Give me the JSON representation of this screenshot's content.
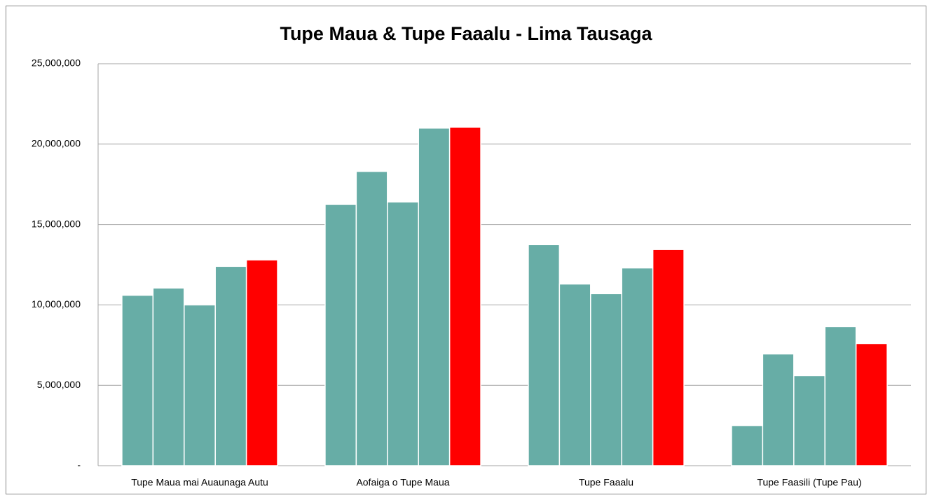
{
  "chart_data": {
    "type": "bar",
    "title": "Tupe Maua & Tupe Faaalu - Lima Tausaga",
    "categories": [
      "Tupe Maua mai Auaunaga Autu",
      "Aofaiga o Tupe Maua",
      "Tupe Faaalu",
      "Tupe Faasili (Tupe Pau)"
    ],
    "series": [
      {
        "color": "#67ada6",
        "values": [
          10600000,
          16250000,
          13750000,
          2500000
        ]
      },
      {
        "color": "#67ada6",
        "values": [
          11050000,
          18300000,
          11300000,
          6950000
        ]
      },
      {
        "color": "#67ada6",
        "values": [
          10000000,
          16400000,
          10700000,
          5600000
        ]
      },
      {
        "color": "#67ada6",
        "values": [
          12400000,
          21000000,
          12300000,
          8650000
        ]
      },
      {
        "color": "#ff0000",
        "values": [
          12800000,
          21050000,
          13450000,
          7600000
        ]
      }
    ],
    "ylim": [
      0,
      25000000
    ],
    "yticks": [
      {
        "value": 0,
        "label": "-"
      },
      {
        "value": 5000000,
        "label": "5,000,000"
      },
      {
        "value": 10000000,
        "label": "10,000,000"
      },
      {
        "value": 15000000,
        "label": "15,000,000"
      },
      {
        "value": 20000000,
        "label": "20,000,000"
      },
      {
        "value": 25000000,
        "label": "25,000,000"
      }
    ],
    "grid": true
  }
}
